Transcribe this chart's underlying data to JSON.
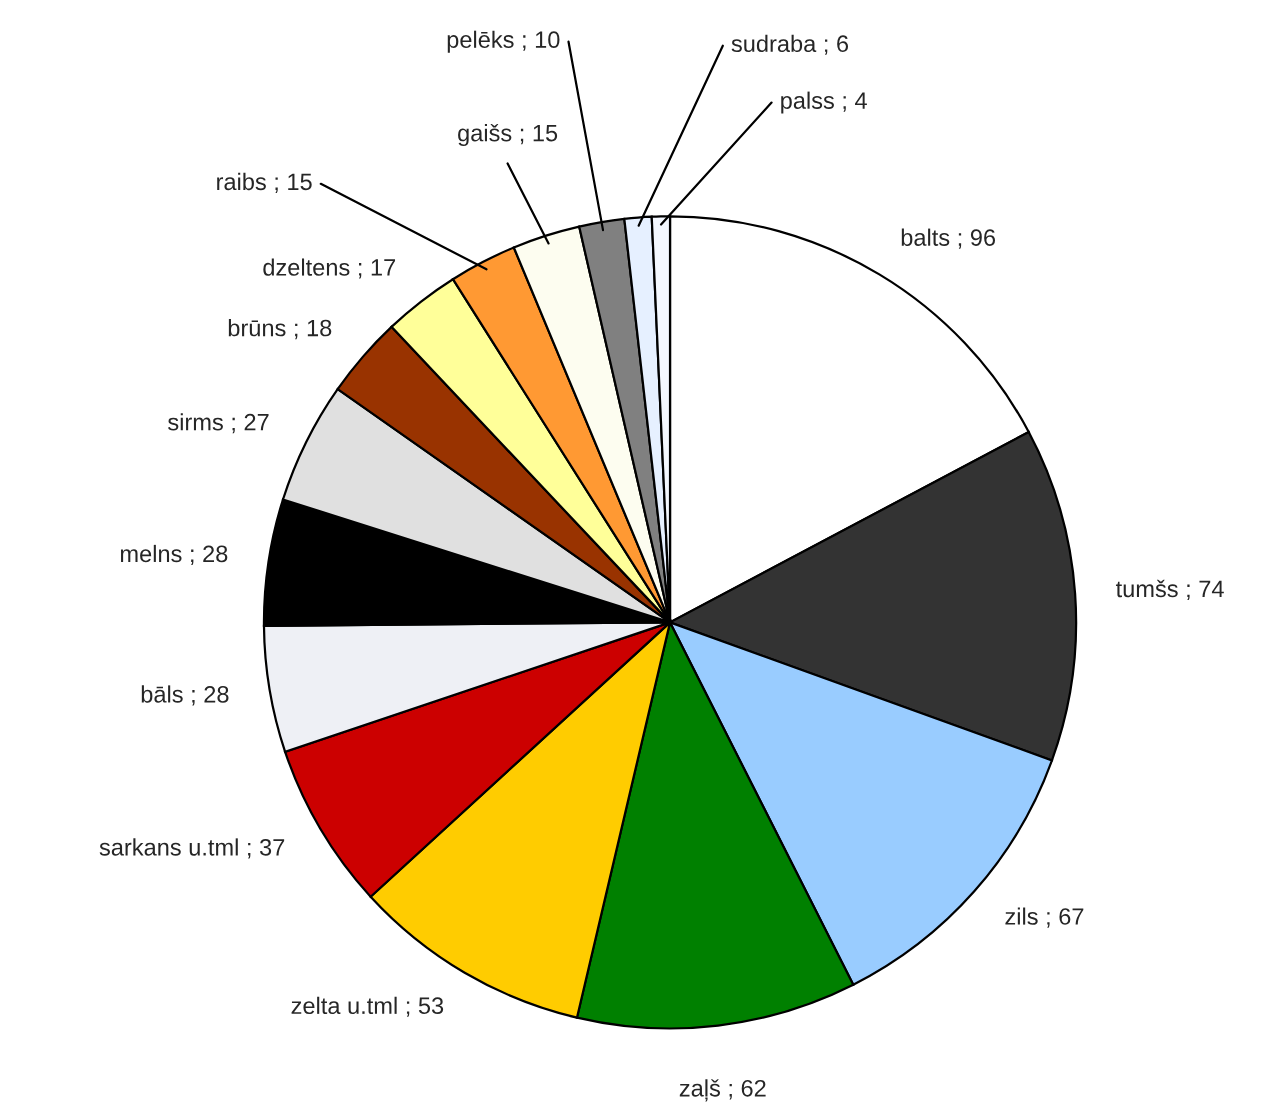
{
  "chart_data": {
    "type": "pie",
    "categories": [
      "balts ; 96",
      "tumšs ; 74",
      "zils ; 67",
      "zaļš ; 62",
      "zelta u.tml ; 53",
      "sarkans u.tml ; 37",
      "bāls ; 28",
      "melns ; 28",
      "sirms ; 27",
      "brūns ; 18",
      "dzeltens ; 17",
      "raibs ; 15",
      "gaišs ; 15",
      "pelēks ; 10",
      "sudraba ; 6",
      "palss ; 4"
    ],
    "values": [
      96,
      74,
      67,
      62,
      53,
      37,
      28,
      28,
      27,
      18,
      17,
      15,
      15,
      10,
      6,
      4
    ],
    "colors": [
      "#ffffff",
      "#333333",
      "#99ccff",
      "#008000",
      "#ffcc00",
      "#cc0000",
      "#eef0f5",
      "#000000",
      "#e0e0e0",
      "#993300",
      "#ffff99",
      "#ff9933",
      "#fdfdf0",
      "#808080",
      "#e6f0ff",
      "#f4f8ff"
    ]
  }
}
